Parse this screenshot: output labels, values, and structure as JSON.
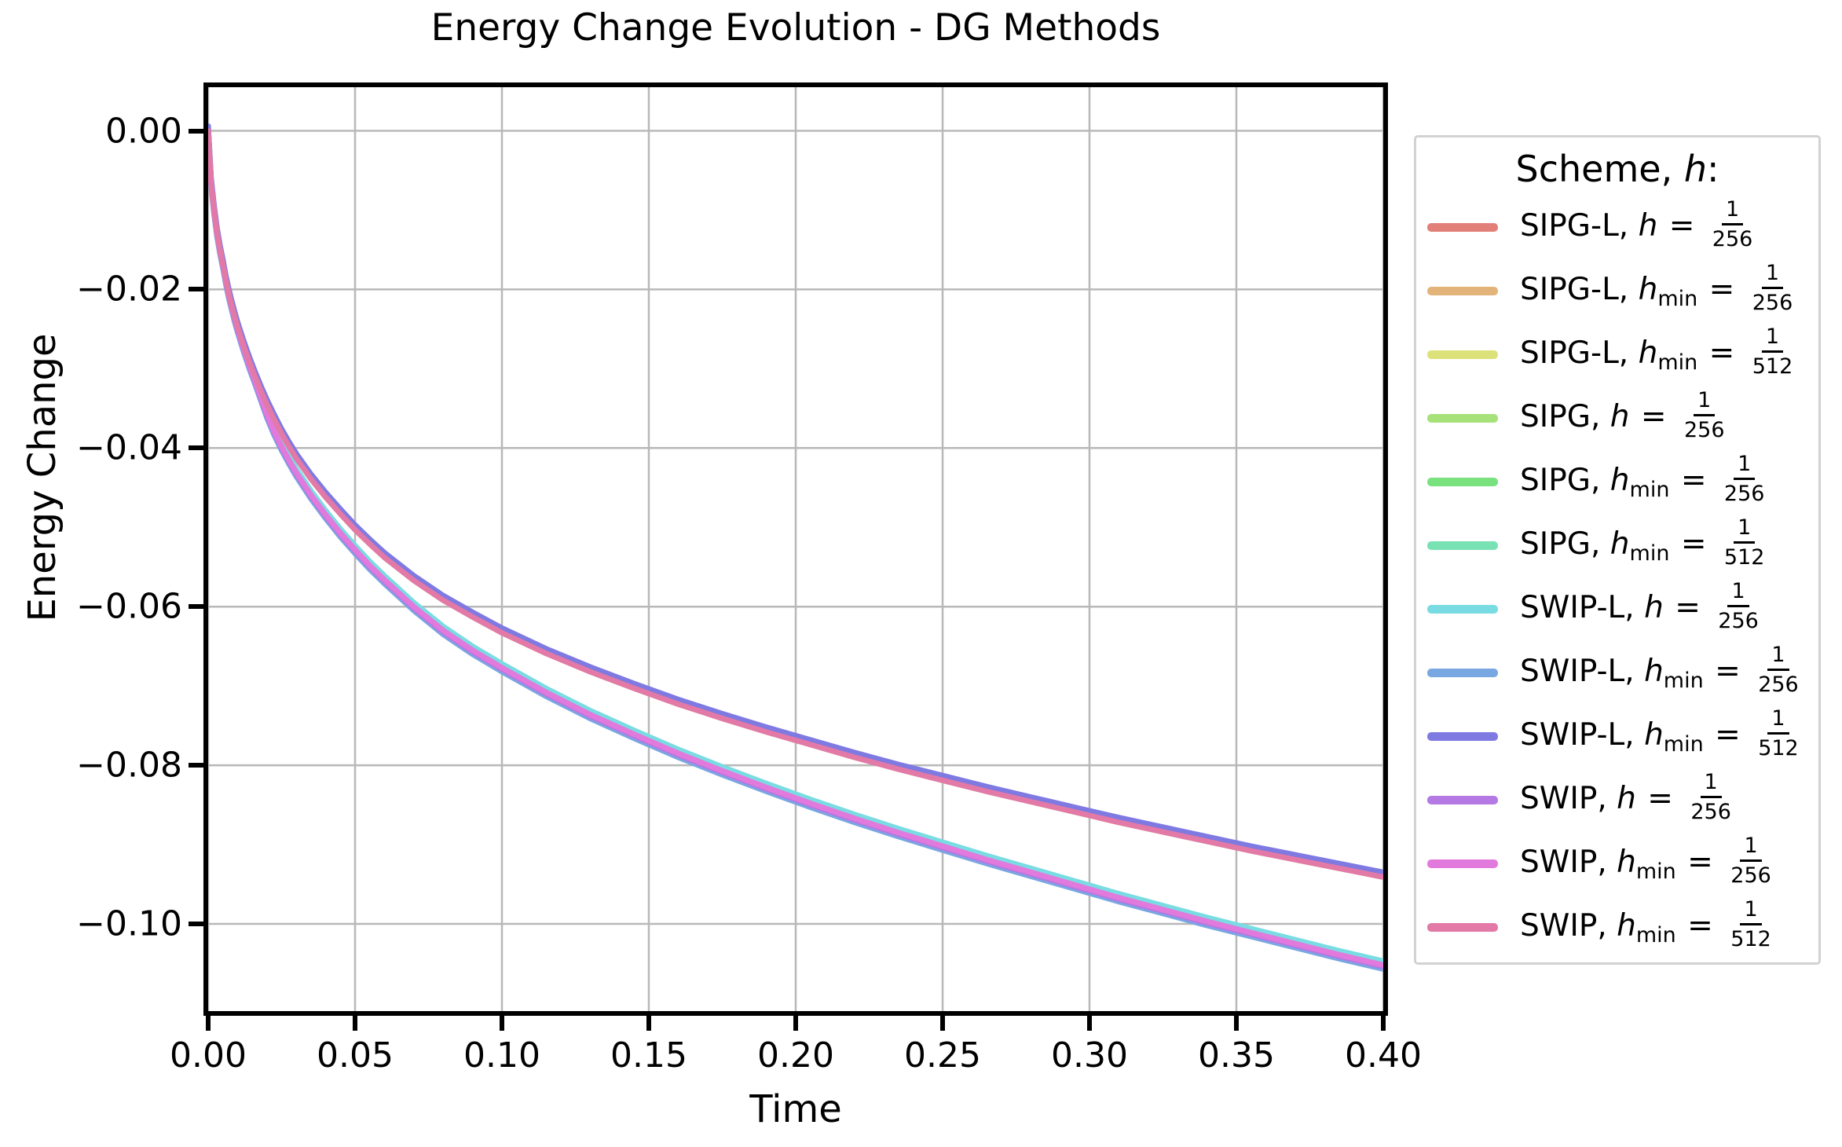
{
  "chart_data": {
    "type": "line",
    "title": "Energy Change Evolution - DG Methods",
    "xlabel": "Time",
    "ylabel": "Energy Change",
    "xlim": [
      0.0,
      0.4
    ],
    "ylim": [
      -0.111,
      0.0055
    ],
    "grid": true,
    "grid_color": "#b8b8b8",
    "spine_color": "#000000",
    "x_ticks": [
      0.0,
      0.05,
      0.1,
      0.15,
      0.2,
      0.25,
      0.3,
      0.35,
      0.4
    ],
    "x_tick_labels": [
      "0.00",
      "0.05",
      "0.10",
      "0.15",
      "0.20",
      "0.25",
      "0.30",
      "0.35",
      "0.40"
    ],
    "y_ticks": [
      0.0,
      -0.02,
      -0.04,
      -0.06,
      -0.08,
      -0.1
    ],
    "y_tick_labels": [
      "0.00",
      "−0.02",
      "−0.04",
      "−0.06",
      "−0.08",
      "−0.10"
    ],
    "legend": {
      "title": "Scheme, h:",
      "title_parts": [
        "Scheme, ",
        "h",
        ":"
      ],
      "separator": ", ",
      "equals": " = ",
      "position": "right"
    },
    "bundles": {
      "fine": [
        [
          0,
          0
        ],
        [
          0.001,
          -0.0065
        ],
        [
          0.002,
          -0.01
        ],
        [
          0.003,
          -0.0128
        ],
        [
          0.004,
          -0.015
        ],
        [
          0.005,
          -0.0168
        ],
        [
          0.006,
          -0.0188
        ],
        [
          0.007,
          -0.0205
        ],
        [
          0.008,
          -0.022
        ],
        [
          0.009,
          -0.0234
        ],
        [
          0.01,
          -0.0247
        ],
        [
          0.012,
          -0.027
        ],
        [
          0.014,
          -0.0291
        ],
        [
          0.016,
          -0.031
        ],
        [
          0.018,
          -0.0328
        ],
        [
          0.02,
          -0.0345
        ],
        [
          0.0225,
          -0.0364
        ],
        [
          0.025,
          -0.0382
        ],
        [
          0.0275,
          -0.0398
        ],
        [
          0.03,
          -0.0413
        ],
        [
          0.035,
          -0.0439
        ],
        [
          0.04,
          -0.0462
        ],
        [
          0.045,
          -0.0483
        ],
        [
          0.05,
          -0.0503
        ],
        [
          0.055,
          -0.0521
        ],
        [
          0.06,
          -0.0538
        ],
        [
          0.07,
          -0.0567
        ],
        [
          0.08,
          -0.0592
        ],
        [
          0.09,
          -0.0613
        ],
        [
          0.1,
          -0.0633
        ],
        [
          0.115,
          -0.0659
        ],
        [
          0.13,
          -0.0682
        ],
        [
          0.145,
          -0.0703
        ],
        [
          0.16,
          -0.0723
        ],
        [
          0.175,
          -0.0741
        ],
        [
          0.19,
          -0.0758
        ],
        [
          0.205,
          -0.0774
        ],
        [
          0.22,
          -0.079
        ],
        [
          0.235,
          -0.0805
        ],
        [
          0.25,
          -0.0819
        ],
        [
          0.265,
          -0.0833
        ],
        [
          0.28,
          -0.0846
        ],
        [
          0.295,
          -0.0859
        ],
        [
          0.31,
          -0.0872
        ],
        [
          0.325,
          -0.0884
        ],
        [
          0.34,
          -0.0896
        ],
        [
          0.355,
          -0.0908
        ],
        [
          0.37,
          -0.0919
        ],
        [
          0.385,
          -0.093
        ],
        [
          0.4,
          -0.0941
        ]
      ],
      "coarse": [
        [
          0,
          0
        ],
        [
          0.001,
          -0.0065
        ],
        [
          0.002,
          -0.01
        ],
        [
          0.003,
          -0.0128
        ],
        [
          0.004,
          -0.015
        ],
        [
          0.005,
          -0.0168
        ],
        [
          0.006,
          -0.0188
        ],
        [
          0.007,
          -0.0206
        ],
        [
          0.008,
          -0.0221
        ],
        [
          0.009,
          -0.0236
        ],
        [
          0.01,
          -0.0249
        ],
        [
          0.012,
          -0.0273
        ],
        [
          0.014,
          -0.0295
        ],
        [
          0.016,
          -0.0315
        ],
        [
          0.018,
          -0.0336
        ],
        [
          0.02,
          -0.0357
        ],
        [
          0.0225,
          -0.0379
        ],
        [
          0.025,
          -0.0398
        ],
        [
          0.0275,
          -0.0415
        ],
        [
          0.03,
          -0.0431
        ],
        [
          0.035,
          -0.0459
        ],
        [
          0.04,
          -0.0484
        ],
        [
          0.045,
          -0.0507
        ],
        [
          0.05,
          -0.0528
        ],
        [
          0.055,
          -0.0548
        ],
        [
          0.06,
          -0.0566
        ],
        [
          0.07,
          -0.06
        ],
        [
          0.08,
          -0.063
        ],
        [
          0.09,
          -0.0655
        ],
        [
          0.1,
          -0.0677
        ],
        [
          0.115,
          -0.0708
        ],
        [
          0.13,
          -0.0736
        ],
        [
          0.145,
          -0.0761
        ],
        [
          0.16,
          -0.0785
        ],
        [
          0.175,
          -0.0807
        ],
        [
          0.19,
          -0.0828
        ],
        [
          0.205,
          -0.0848
        ],
        [
          0.22,
          -0.0867
        ],
        [
          0.235,
          -0.0885
        ],
        [
          0.25,
          -0.0902
        ],
        [
          0.265,
          -0.0919
        ],
        [
          0.28,
          -0.0935
        ],
        [
          0.295,
          -0.0951
        ],
        [
          0.31,
          -0.0967
        ],
        [
          0.325,
          -0.0982
        ],
        [
          0.34,
          -0.0997
        ],
        [
          0.355,
          -0.1011
        ],
        [
          0.37,
          -0.1025
        ],
        [
          0.385,
          -0.1039
        ],
        [
          0.4,
          -0.1052
        ]
      ]
    },
    "series": [
      {
        "label": "SIPG-L, h = 1/256",
        "scheme": "SIPG-L",
        "var": "h",
        "sub": "",
        "num": "1",
        "den": "256",
        "color": "#e27f79",
        "bundle": "coarse",
        "offset": 0.0002
      },
      {
        "label": "SIPG-L, h_min = 1/256",
        "scheme": "SIPG-L",
        "var": "h",
        "sub": "min",
        "num": "1",
        "den": "256",
        "color": "#e2b479",
        "bundle": "coarse",
        "offset": 0.0004
      },
      {
        "label": "SIPG-L, h_min = 1/512",
        "scheme": "SIPG-L",
        "var": "h",
        "sub": "min",
        "num": "1",
        "den": "512",
        "color": "#dce279",
        "bundle": "fine",
        "offset": 0.0
      },
      {
        "label": "SIPG, h = 1/256",
        "scheme": "SIPG",
        "var": "h",
        "sub": "",
        "num": "1",
        "den": "256",
        "color": "#a6e279",
        "bundle": "coarse",
        "offset": 0.0
      },
      {
        "label": "SIPG, h_min = 1/256",
        "scheme": "SIPG",
        "var": "h",
        "sub": "min",
        "num": "1",
        "den": "256",
        "color": "#79e27f",
        "bundle": "coarse",
        "offset": 0.0002
      },
      {
        "label": "SIPG, h_min = 1/512",
        "scheme": "SIPG",
        "var": "h",
        "sub": "min",
        "num": "1",
        "den": "512",
        "color": "#79e2b4",
        "bundle": "fine",
        "offset": 0.0002
      },
      {
        "label": "SWIP-L, h = 1/256",
        "scheme": "SWIP-L",
        "var": "h",
        "sub": "",
        "num": "1",
        "den": "256",
        "color": "#79dce2",
        "bundle": "coarse",
        "offset": 0.0005
      },
      {
        "label": "SWIP-L, h_min = 1/256",
        "scheme": "SWIP-L",
        "var": "h",
        "sub": "min",
        "num": "1",
        "den": "256",
        "color": "#79a7e2",
        "bundle": "coarse",
        "offset": -0.0005
      },
      {
        "label": "SWIP-L, h_min = 1/512",
        "scheme": "SWIP-L",
        "var": "h",
        "sub": "min",
        "num": "1",
        "den": "512",
        "color": "#7f79e2",
        "bundle": "fine",
        "offset": 0.0006
      },
      {
        "label": "SWIP, h = 1/256",
        "scheme": "SWIP",
        "var": "h",
        "sub": "",
        "num": "1",
        "den": "256",
        "color": "#b479e2",
        "bundle": "coarse",
        "offset": -0.0002
      },
      {
        "label": "SWIP, h_min = 1/256",
        "scheme": "SWIP",
        "var": "h",
        "sub": "min",
        "num": "1",
        "den": "256",
        "color": "#e279dc",
        "bundle": "coarse",
        "offset": 0.0
      },
      {
        "label": "SWIP, h_min = 1/512",
        "scheme": "SWIP",
        "var": "h",
        "sub": "min",
        "num": "1",
        "den": "512",
        "color": "#e279a7",
        "bundle": "fine",
        "offset": 0.0
      }
    ],
    "line_width": 7
  }
}
